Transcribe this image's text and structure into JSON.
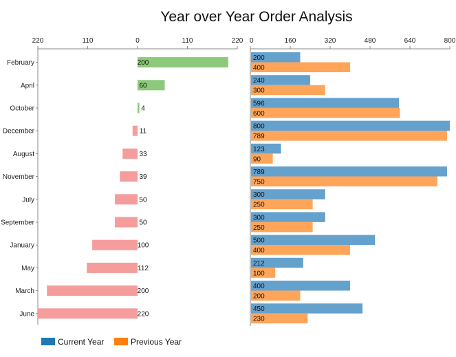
{
  "chart_data": {
    "type": "bar",
    "title": "Year over Year Order Analysis",
    "categories": [
      "February",
      "April",
      "October",
      "December",
      "August",
      "November",
      "July",
      "September",
      "January",
      "May",
      "March",
      "June"
    ],
    "difference_panel": {
      "xlim": [
        -220,
        220
      ],
      "ticks": [
        "220",
        "110",
        "0",
        "110",
        "220"
      ],
      "tick_values": [
        -220,
        -110,
        0,
        110,
        220
      ],
      "values": [
        200,
        60,
        4,
        -11,
        -33,
        -39,
        -50,
        -50,
        -100,
        -112,
        -200,
        -220
      ],
      "labels": [
        "200",
        "60",
        "4",
        "11",
        "33",
        "39",
        "50",
        "50",
        "100",
        "112",
        "200",
        "220"
      ],
      "positive_color": "#8cc97a",
      "negative_color": "#f59d9d"
    },
    "comparison_panel": {
      "xlim": [
        0,
        800
      ],
      "ticks": [
        "0",
        "160",
        "320",
        "480",
        "640",
        "800"
      ],
      "tick_values": [
        0,
        160,
        320,
        480,
        640,
        800
      ],
      "series": [
        {
          "name": "Current Year",
          "color": "#65a1cd",
          "values": [
            200,
            240,
            596,
            800,
            123,
            789,
            300,
            300,
            500,
            212,
            400,
            450
          ]
        },
        {
          "name": "Previous Year",
          "color": "#fea55a",
          "values": [
            400,
            300,
            600,
            789,
            90,
            750,
            250,
            250,
            400,
            100,
            200,
            230
          ]
        }
      ]
    },
    "legend": {
      "position": "bottom-left",
      "items": [
        {
          "label": "Current Year",
          "color": "#1f77b4"
        },
        {
          "label": "Previous Year",
          "color": "#ff7f0e"
        }
      ]
    },
    "grid": false
  }
}
